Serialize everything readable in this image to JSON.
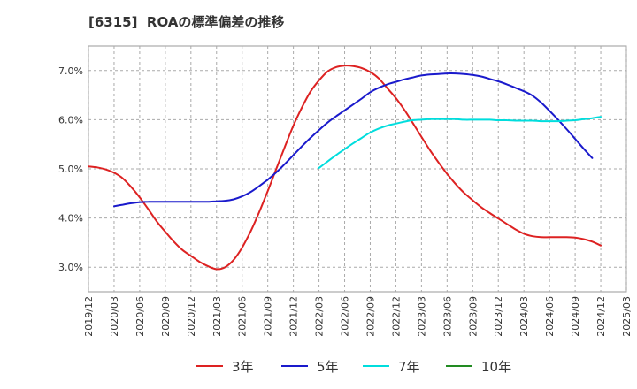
{
  "chart_data": {
    "type": "line",
    "title": "[6315]  ROAの標準偏差の推移",
    "xlabel": "",
    "ylabel": "",
    "ylim": [
      2.5,
      7.5
    ],
    "yticks": [
      3.0,
      4.0,
      5.0,
      6.0,
      7.0
    ],
    "ytick_labels": [
      "3.0%",
      "4.0%",
      "5.0%",
      "6.0%",
      "7.0%"
    ],
    "x_tick_labels": [
      "2019/12",
      "2020/03",
      "2020/06",
      "2020/09",
      "2020/12",
      "2021/03",
      "2021/06",
      "2021/09",
      "2021/12",
      "2022/03",
      "2022/06",
      "2022/09",
      "2022/12",
      "2023/03",
      "2023/06",
      "2023/09",
      "2023/12",
      "2024/03",
      "2024/06",
      "2024/09",
      "2024/12",
      "2025/03"
    ],
    "grid": "horizontal dashed",
    "legend_position": "bottom",
    "series": [
      {
        "name": "3年",
        "color": "#dd2222",
        "points": [
          [
            "2019/12",
            5.05
          ],
          [
            "2020/01",
            5.03
          ],
          [
            "2020/02",
            4.99
          ],
          [
            "2020/03",
            4.92
          ],
          [
            "2020/04",
            4.81
          ],
          [
            "2020/05",
            4.63
          ],
          [
            "2020/06",
            4.42
          ],
          [
            "2020/07",
            4.18
          ],
          [
            "2020/08",
            3.93
          ],
          [
            "2020/09",
            3.72
          ],
          [
            "2020/10",
            3.52
          ],
          [
            "2020/11",
            3.35
          ],
          [
            "2020/12",
            3.23
          ],
          [
            "2021/01",
            3.11
          ],
          [
            "2021/02",
            3.02
          ],
          [
            "2021/03",
            2.96
          ],
          [
            "2021/04",
            3.0
          ],
          [
            "2021/05",
            3.15
          ],
          [
            "2021/06",
            3.4
          ],
          [
            "2021/07",
            3.73
          ],
          [
            "2021/08",
            4.12
          ],
          [
            "2021/09",
            4.55
          ],
          [
            "2021/10",
            5.0
          ],
          [
            "2021/11",
            5.45
          ],
          [
            "2021/12",
            5.88
          ],
          [
            "2022/01",
            6.25
          ],
          [
            "2022/02",
            6.57
          ],
          [
            "2022/03",
            6.8
          ],
          [
            "2022/04",
            6.98
          ],
          [
            "2022/05",
            7.07
          ],
          [
            "2022/06",
            7.1
          ],
          [
            "2022/07",
            7.09
          ],
          [
            "2022/08",
            7.05
          ],
          [
            "2022/09",
            6.97
          ],
          [
            "2022/10",
            6.84
          ],
          [
            "2022/11",
            6.64
          ],
          [
            "2022/12",
            6.44
          ],
          [
            "2023/01",
            6.2
          ],
          [
            "2023/02",
            5.93
          ],
          [
            "2023/03",
            5.65
          ],
          [
            "2023/04",
            5.38
          ],
          [
            "2023/05",
            5.13
          ],
          [
            "2023/06",
            4.9
          ],
          [
            "2023/07",
            4.69
          ],
          [
            "2023/08",
            4.51
          ],
          [
            "2023/09",
            4.36
          ],
          [
            "2023/10",
            4.22
          ],
          [
            "2023/11",
            4.1
          ],
          [
            "2023/12",
            3.99
          ],
          [
            "2024/01",
            3.88
          ],
          [
            "2024/02",
            3.77
          ],
          [
            "2024/03",
            3.68
          ],
          [
            "2024/04",
            3.63
          ],
          [
            "2024/05",
            3.61
          ],
          [
            "2024/06",
            3.61
          ],
          [
            "2024/07",
            3.61
          ],
          [
            "2024/08",
            3.61
          ],
          [
            "2024/09",
            3.6
          ],
          [
            "2024/10",
            3.57
          ],
          [
            "2024/11",
            3.52
          ],
          [
            "2024/12",
            3.44
          ]
        ]
      },
      {
        "name": "5年",
        "color": "#1a1acc",
        "points": [
          [
            "2020/03",
            4.24
          ],
          [
            "2020/04",
            4.27
          ],
          [
            "2020/05",
            4.3
          ],
          [
            "2020/06",
            4.32
          ],
          [
            "2020/07",
            4.33
          ],
          [
            "2020/08",
            4.33
          ],
          [
            "2020/09",
            4.33
          ],
          [
            "2020/10",
            4.33
          ],
          [
            "2020/11",
            4.33
          ],
          [
            "2020/12",
            4.33
          ],
          [
            "2021/01",
            4.33
          ],
          [
            "2021/02",
            4.33
          ],
          [
            "2021/03",
            4.34
          ],
          [
            "2021/04",
            4.35
          ],
          [
            "2021/05",
            4.38
          ],
          [
            "2021/06",
            4.44
          ],
          [
            "2021/07",
            4.53
          ],
          [
            "2021/08",
            4.65
          ],
          [
            "2021/09",
            4.78
          ],
          [
            "2021/10",
            4.93
          ],
          [
            "2021/11",
            5.1
          ],
          [
            "2021/12",
            5.28
          ],
          [
            "2022/01",
            5.46
          ],
          [
            "2022/02",
            5.63
          ],
          [
            "2022/03",
            5.79
          ],
          [
            "2022/04",
            5.94
          ],
          [
            "2022/05",
            6.07
          ],
          [
            "2022/06",
            6.19
          ],
          [
            "2022/07",
            6.31
          ],
          [
            "2022/08",
            6.43
          ],
          [
            "2022/09",
            6.56
          ],
          [
            "2022/10",
            6.65
          ],
          [
            "2022/11",
            6.72
          ],
          [
            "2022/12",
            6.77
          ],
          [
            "2023/01",
            6.82
          ],
          [
            "2023/02",
            6.86
          ],
          [
            "2023/03",
            6.9
          ],
          [
            "2023/04",
            6.92
          ],
          [
            "2023/05",
            6.93
          ],
          [
            "2023/06",
            6.94
          ],
          [
            "2023/07",
            6.94
          ],
          [
            "2023/08",
            6.93
          ],
          [
            "2023/09",
            6.91
          ],
          [
            "2023/10",
            6.88
          ],
          [
            "2023/11",
            6.83
          ],
          [
            "2023/12",
            6.78
          ],
          [
            "2024/01",
            6.72
          ],
          [
            "2024/02",
            6.65
          ],
          [
            "2024/03",
            6.58
          ],
          [
            "2024/04",
            6.49
          ],
          [
            "2024/05",
            6.35
          ],
          [
            "2024/06",
            6.18
          ],
          [
            "2024/07",
            6.0
          ],
          [
            "2024/08",
            5.81
          ],
          [
            "2024/09",
            5.61
          ],
          [
            "2024/10",
            5.41
          ],
          [
            "2024/11",
            5.22
          ]
        ]
      },
      {
        "name": "7年",
        "color": "#00dddd",
        "points": [
          [
            "2022/03",
            5.02
          ],
          [
            "2022/04",
            5.15
          ],
          [
            "2022/05",
            5.28
          ],
          [
            "2022/06",
            5.4
          ],
          [
            "2022/07",
            5.52
          ],
          [
            "2022/08",
            5.63
          ],
          [
            "2022/09",
            5.74
          ],
          [
            "2022/10",
            5.82
          ],
          [
            "2022/11",
            5.88
          ],
          [
            "2022/12",
            5.92
          ],
          [
            "2023/01",
            5.96
          ],
          [
            "2023/02",
            5.99
          ],
          [
            "2023/03",
            6.0
          ],
          [
            "2023/04",
            6.01
          ],
          [
            "2023/05",
            6.01
          ],
          [
            "2023/06",
            6.01
          ],
          [
            "2023/07",
            6.01
          ],
          [
            "2023/08",
            6.0
          ],
          [
            "2023/09",
            6.0
          ],
          [
            "2023/10",
            6.0
          ],
          [
            "2023/11",
            6.0
          ],
          [
            "2023/12",
            5.99
          ],
          [
            "2024/01",
            5.99
          ],
          [
            "2024/02",
            5.98
          ],
          [
            "2024/03",
            5.98
          ],
          [
            "2024/04",
            5.98
          ],
          [
            "2024/05",
            5.97
          ],
          [
            "2024/06",
            5.97
          ],
          [
            "2024/07",
            5.97
          ],
          [
            "2024/08",
            5.98
          ],
          [
            "2024/09",
            5.99
          ],
          [
            "2024/10",
            6.01
          ],
          [
            "2024/11",
            6.03
          ],
          [
            "2024/12",
            6.06
          ]
        ]
      },
      {
        "name": "10年",
        "color": "#228B22",
        "points": []
      }
    ]
  }
}
